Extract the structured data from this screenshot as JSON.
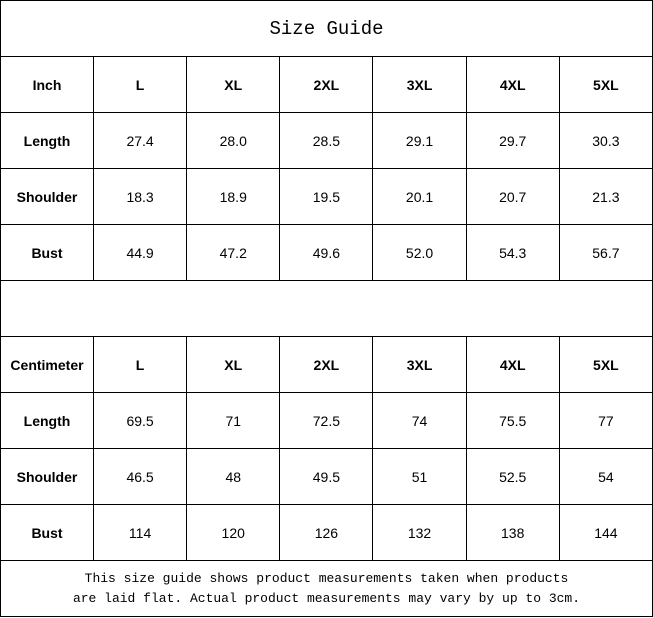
{
  "title": "Size Guide",
  "tables": [
    {
      "unit": "Inch",
      "sizes": [
        "L",
        "XL",
        "2XL",
        "3XL",
        "4XL",
        "5XL"
      ],
      "rows": [
        {
          "label": "Length",
          "values": [
            "27.4",
            "28.0",
            "28.5",
            "29.1",
            "29.7",
            "30.3"
          ]
        },
        {
          "label": "Shoulder",
          "values": [
            "18.3",
            "18.9",
            "19.5",
            "20.1",
            "20.7",
            "21.3"
          ]
        },
        {
          "label": "Bust",
          "values": [
            "44.9",
            "47.2",
            "49.6",
            "52.0",
            "54.3",
            "56.7"
          ]
        }
      ]
    },
    {
      "unit": "Centimeter",
      "sizes": [
        "L",
        "XL",
        "2XL",
        "3XL",
        "4XL",
        "5XL"
      ],
      "rows": [
        {
          "label": "Length",
          "values": [
            "69.5",
            "71",
            "72.5",
            "74",
            "75.5",
            "77"
          ]
        },
        {
          "label": "Shoulder",
          "values": [
            "46.5",
            "48",
            "49.5",
            "51",
            "52.5",
            "54"
          ]
        },
        {
          "label": "Bust",
          "values": [
            "114",
            "120",
            "126",
            "132",
            "138",
            "144"
          ]
        }
      ]
    }
  ],
  "note_lines": [
    "This size guide shows product measurements taken when products",
    "are laid flat. Actual product measurements may vary by up to 3cm."
  ]
}
